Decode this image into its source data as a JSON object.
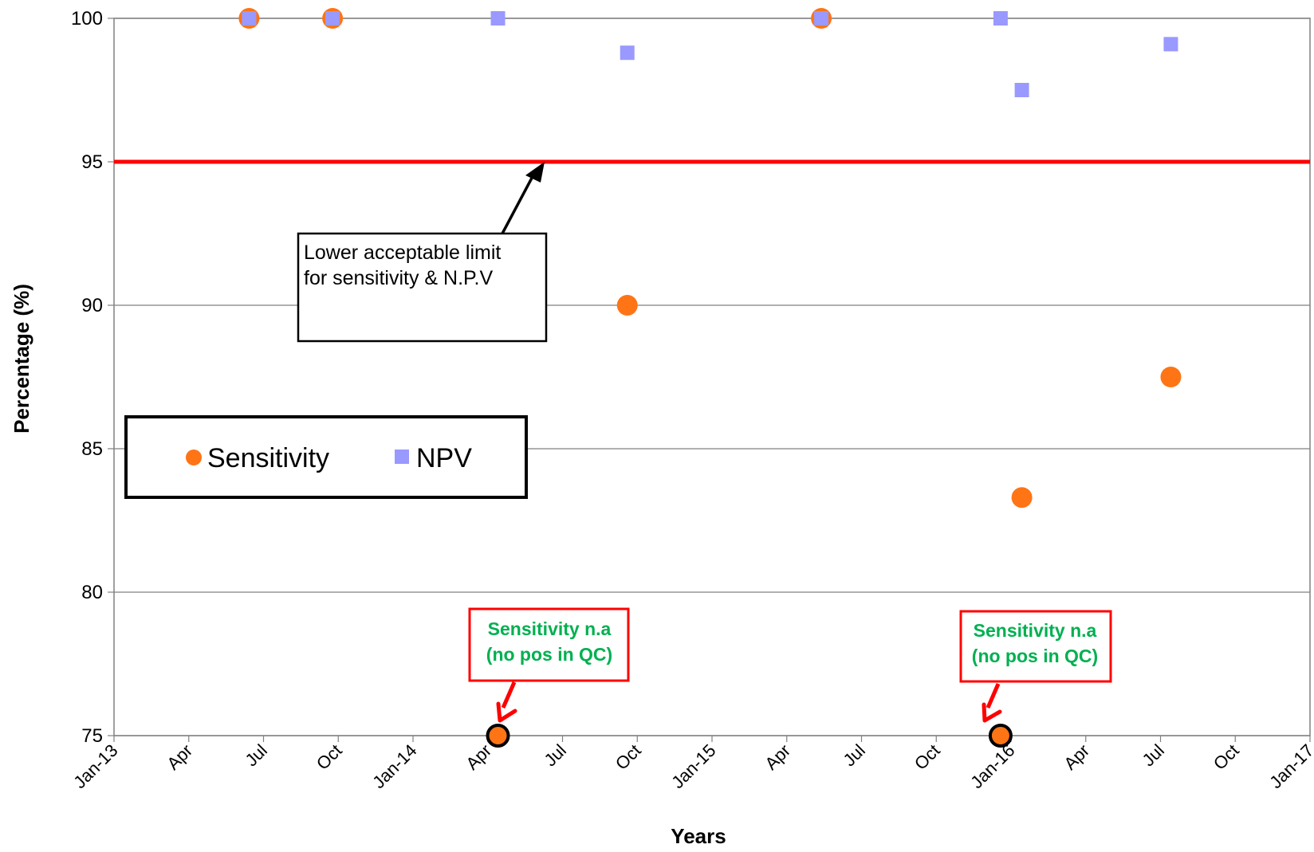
{
  "chart_data": {
    "type": "scatter",
    "xlabel": "Years",
    "ylabel": "Percentage (%)",
    "ylim": [
      75,
      100
    ],
    "xlim": [
      "2013-01-01",
      "2017-01-01"
    ],
    "y_ticks": [
      "100",
      "95",
      "90",
      "85",
      "80",
      "75"
    ],
    "x_ticks": [
      "Jan-13",
      "Apr",
      "Jul",
      "Oct",
      "Jan-14",
      "Apr",
      "Jul",
      "Oct",
      "Jan-15",
      "Apr",
      "Jul",
      "Oct",
      "Jan-16",
      "Apr",
      "Jul",
      "Oct",
      "Jan-17"
    ],
    "grid": "horizontal",
    "series": [
      {
        "name": "Sensitivity",
        "color": "#ff7415",
        "marker": "circle",
        "points": [
          {
            "x": "2013-06-15",
            "y": 100
          },
          {
            "x": "2013-09-25",
            "y": 100
          },
          {
            "x": "2014-04-15",
            "y": 75
          },
          {
            "x": "2014-09-20",
            "y": 90
          },
          {
            "x": "2015-05-15",
            "y": 100
          },
          {
            "x": "2015-12-20",
            "y": 75
          },
          {
            "x": "2016-01-15",
            "y": 83.3
          },
          {
            "x": "2016-07-15",
            "y": 87.5
          }
        ]
      },
      {
        "name": "NPV",
        "color": "#9999ff",
        "marker": "square",
        "points": [
          {
            "x": "2013-06-15",
            "y": 100
          },
          {
            "x": "2013-09-25",
            "y": 100
          },
          {
            "x": "2014-04-15",
            "y": 100
          },
          {
            "x": "2014-09-20",
            "y": 98.8
          },
          {
            "x": "2015-05-15",
            "y": 100
          },
          {
            "x": "2015-12-20",
            "y": 100
          },
          {
            "x": "2016-01-15",
            "y": 97.5
          },
          {
            "x": "2016-07-15",
            "y": 99.1
          }
        ]
      }
    ],
    "reference_line": {
      "y": 95,
      "color": "#ff0000"
    },
    "annotations": {
      "limit_line1": "Lower acceptable limit",
      "limit_line2": "for sensitivity & N.P.V",
      "na_line1": "Sensitivity n.a",
      "na_line2": "(no pos in QC)"
    },
    "legend": {
      "position": "left-middle",
      "entries": [
        "Sensitivity",
        "NPV"
      ]
    }
  }
}
